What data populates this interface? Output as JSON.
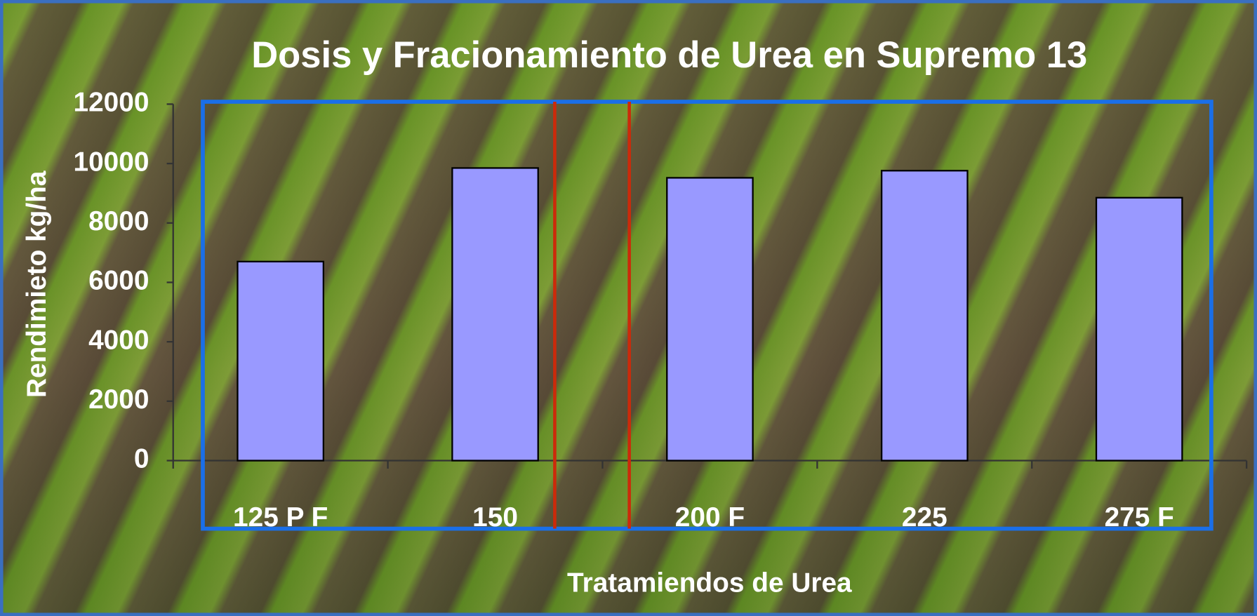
{
  "chart_data": {
    "type": "bar",
    "title": "Dosis y Fracionamiento de Urea en Supremo 13",
    "x_label": "Tratamiendos de Urea",
    "y_label": "Rendimieto kg/ha",
    "categories": [
      "125 P F",
      "150",
      "200 F",
      "225",
      "275 F"
    ],
    "values": [
      6700,
      9850,
      9520,
      9760,
      8850
    ],
    "color": "#9999ff",
    "ylim": [
      0,
      12000
    ],
    "yticks": [
      0,
      2000,
      4000,
      6000,
      8000,
      10000,
      12000
    ]
  }
}
